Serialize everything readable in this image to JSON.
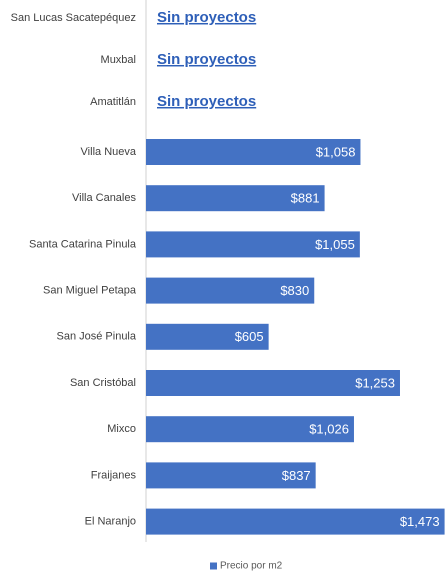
{
  "chart_data": {
    "type": "bar",
    "orientation": "horizontal",
    "categories": [
      "San Lucas Sacatepéquez",
      "Muxbal",
      "Amatitlán",
      "Villa Nueva",
      "Villa Canales",
      "Santa Catarina Pinula",
      "San Miguel Petapa",
      "San José Pinula",
      "San Cristóbal",
      "Mixco",
      "Fraijanes",
      "El Naranjo"
    ],
    "series": [
      {
        "name": "Precio por m2",
        "color": "#4472c4",
        "values": [
          null,
          null,
          null,
          1058,
          881,
          1055,
          830,
          605,
          1253,
          1026,
          837,
          1473
        ],
        "value_labels": [
          "Sin proyectos",
          "Sin proyectos",
          "Sin proyectos",
          "$1,058",
          "$881",
          "$1,055",
          "$830",
          "$605",
          "$1,253",
          "$1,026",
          "$837",
          "$1,473"
        ]
      }
    ],
    "xlim": [
      0,
      1480
    ],
    "legend": "bottom"
  }
}
